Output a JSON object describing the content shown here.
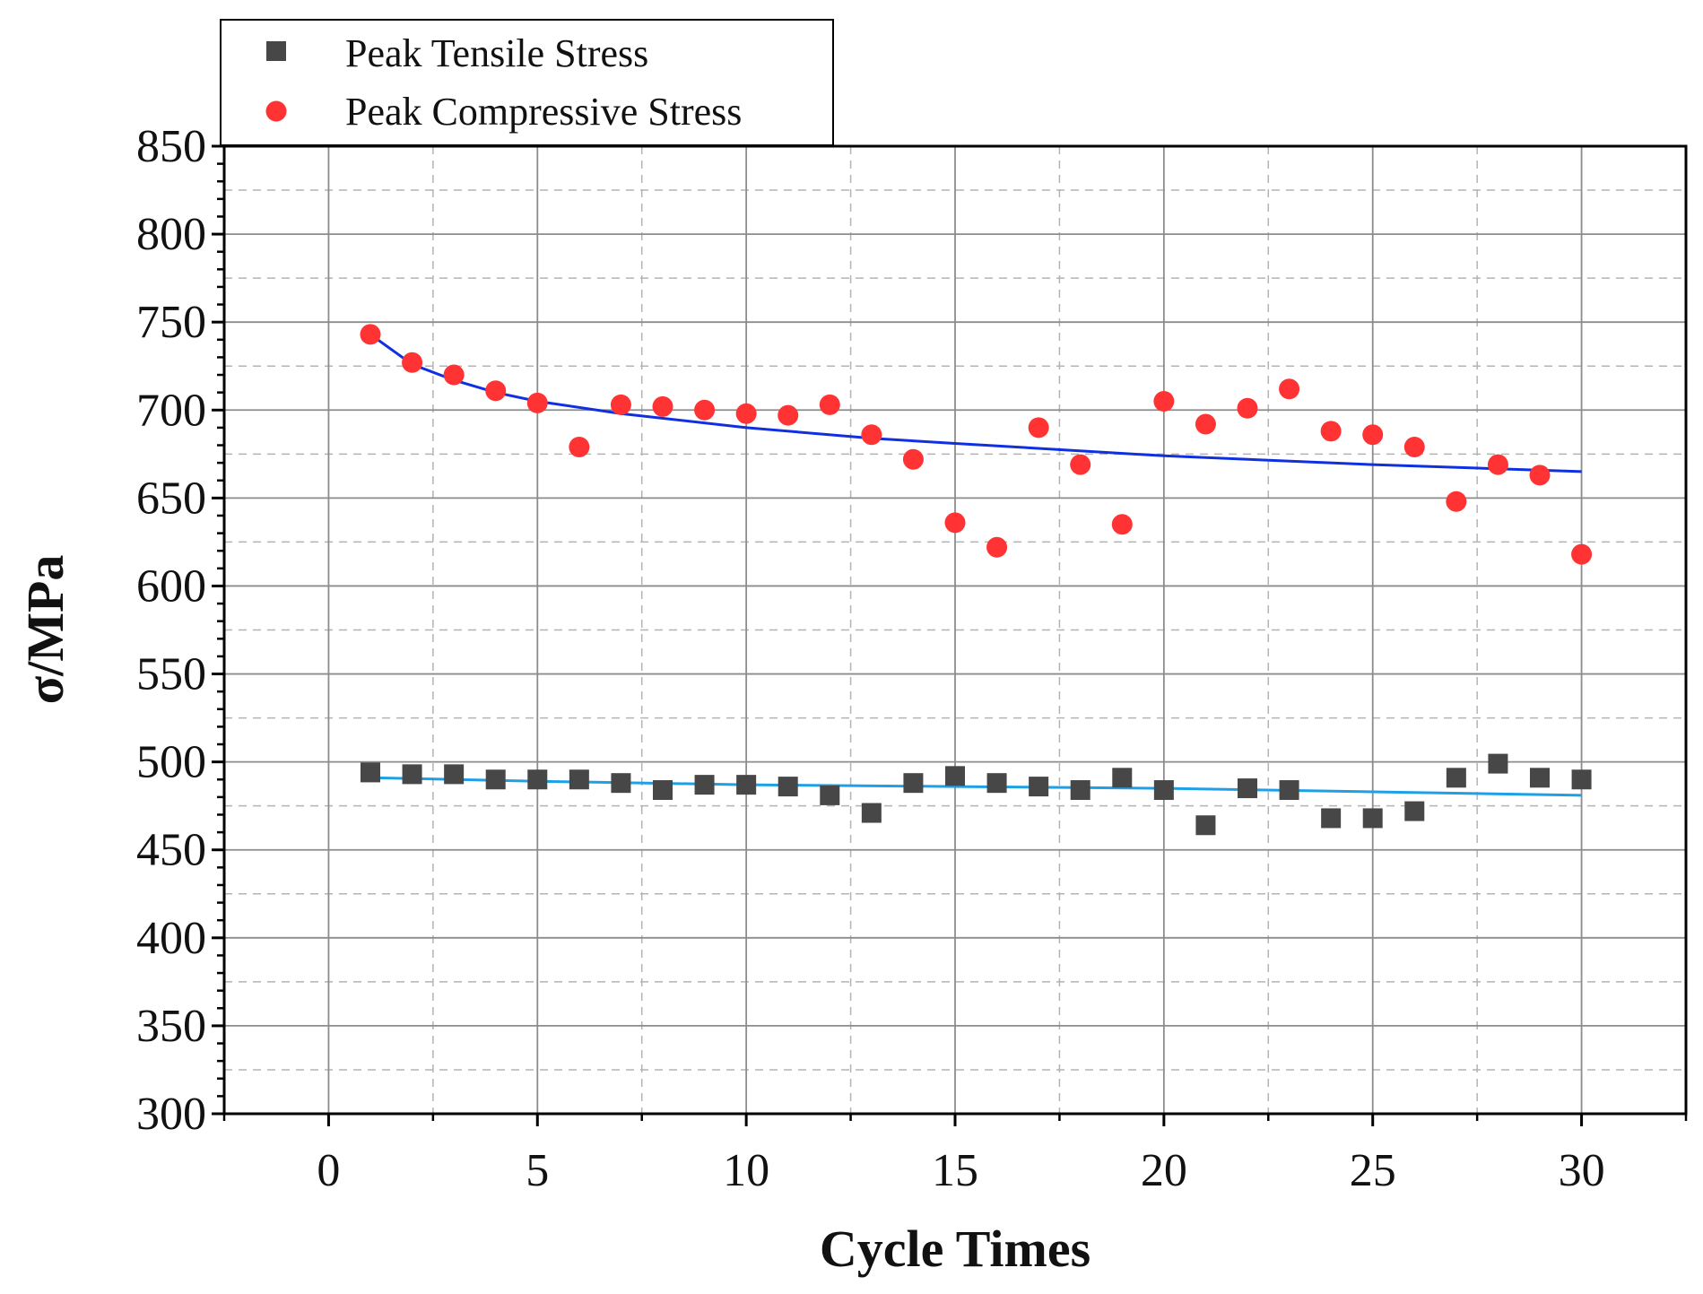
{
  "chart_data": {
    "type": "scatter",
    "title": "",
    "xlabel": "Cycle Times",
    "ylabel": "σ/MPa",
    "xlim": [
      -2.5,
      32.5
    ],
    "ylim": [
      300,
      850
    ],
    "x_ticks": [
      0,
      5,
      10,
      15,
      20,
      25,
      30
    ],
    "y_ticks": [
      300,
      350,
      400,
      450,
      500,
      550,
      600,
      650,
      700,
      750,
      800,
      850
    ],
    "grid": true,
    "legend_position": "top-left",
    "series": [
      {
        "name": "Peak Tensile Stress",
        "marker": "square",
        "color": "#474747",
        "x": [
          1,
          2,
          3,
          4,
          5,
          6,
          7,
          8,
          9,
          10,
          11,
          12,
          13,
          14,
          15,
          16,
          17,
          18,
          19,
          20,
          21,
          22,
          23,
          24,
          25,
          26,
          27,
          28,
          29,
          30
        ],
        "values": [
          494,
          493,
          493,
          490,
          490,
          490,
          488,
          484,
          487,
          487,
          486,
          481,
          471,
          488,
          492,
          488,
          486,
          484,
          491,
          484,
          464,
          485,
          484,
          468,
          468,
          472,
          491,
          499,
          491,
          490
        ]
      },
      {
        "name": "Peak Compressive Stress",
        "marker": "circle",
        "color": "#ff3333",
        "x": [
          1,
          2,
          3,
          4,
          5,
          6,
          7,
          8,
          9,
          10,
          11,
          12,
          13,
          14,
          15,
          16,
          17,
          18,
          19,
          20,
          21,
          22,
          23,
          24,
          25,
          26,
          27,
          28,
          29,
          30
        ],
        "values": [
          743,
          727,
          720,
          711,
          704,
          679,
          703,
          702,
          700,
          698,
          697,
          703,
          686,
          672,
          636,
          622,
          690,
          669,
          635,
          705,
          692,
          701,
          712,
          688,
          686,
          679,
          648,
          669,
          663,
          618
        ]
      }
    ],
    "fits": [
      {
        "name": "tensile-fit",
        "color": "#1ea0e6",
        "x": [
          1,
          5,
          10,
          15,
          20,
          25,
          30
        ],
        "values": [
          491,
          489,
          487,
          486,
          485,
          483,
          481
        ]
      },
      {
        "name": "compressive-fit",
        "color": "#1030e0",
        "x": [
          1,
          2,
          3,
          4,
          5,
          7,
          10,
          13,
          15,
          20,
          25,
          30
        ],
        "values": [
          743,
          726,
          717,
          710,
          705,
          698,
          690,
          684,
          681,
          674,
          669,
          665
        ]
      }
    ]
  }
}
